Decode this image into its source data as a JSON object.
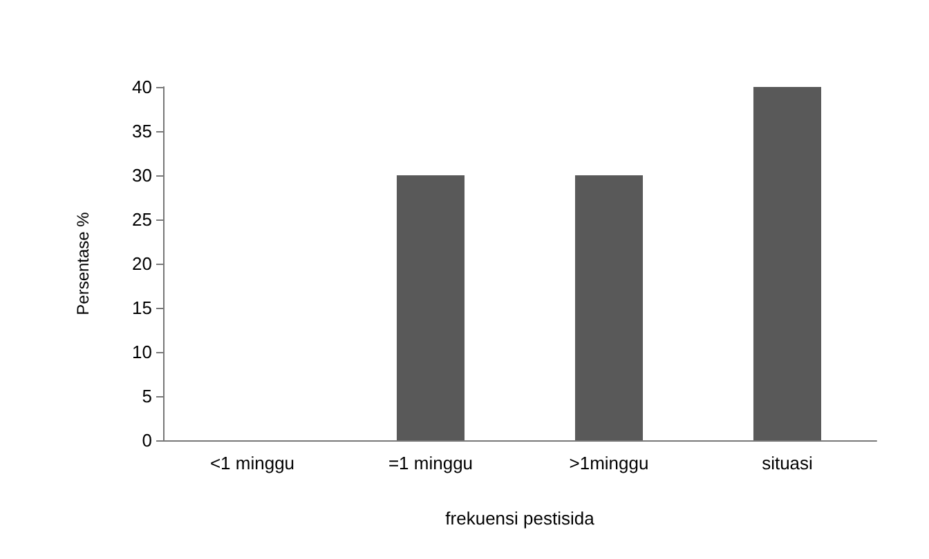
{
  "chart_data": {
    "type": "bar",
    "xlabel": "frekuensi pestisida",
    "ylabel": "Persentase %",
    "categories": [
      "<1 minggu",
      "=1 minggu",
      ">1minggu",
      "situasi"
    ],
    "values": [
      0,
      30,
      30,
      40
    ],
    "color": "#595959",
    "ylim": [
      0,
      40
    ],
    "yticks": [
      0,
      5,
      10,
      15,
      20,
      25,
      30,
      35,
      40
    ],
    "grid": false
  }
}
